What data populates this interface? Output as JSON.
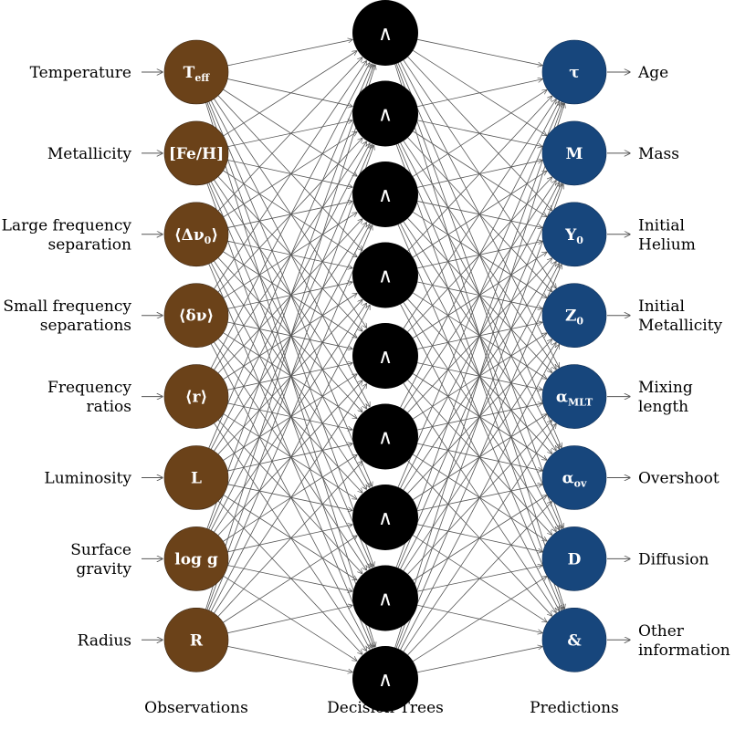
{
  "colors": {
    "observation_node": "#6b4219",
    "tree_node": "#000000",
    "prediction_node": "#17467c",
    "edge": "#555555"
  },
  "observations": [
    {
      "label_lines": [
        "Temperature"
      ],
      "node_main": "T",
      "node_sub": "eff"
    },
    {
      "label_lines": [
        "Metallicity"
      ],
      "node_main": "[Fe/H]",
      "node_sub": ""
    },
    {
      "label_lines": [
        "Large frequency",
        "separation"
      ],
      "node_main": "⟨Δν",
      "node_sub": "0",
      "node_after": "⟩"
    },
    {
      "label_lines": [
        "Small frequency",
        "separations"
      ],
      "node_main": "⟨δν⟩",
      "node_sub": ""
    },
    {
      "label_lines": [
        "Frequency",
        "ratios"
      ],
      "node_main": "⟨r⟩",
      "node_sub": ""
    },
    {
      "label_lines": [
        "Luminosity"
      ],
      "node_main": "L",
      "node_sub": ""
    },
    {
      "label_lines": [
        "Surface",
        "gravity"
      ],
      "node_main": "log g",
      "node_sub": ""
    },
    {
      "label_lines": [
        "Radius"
      ],
      "node_main": "R",
      "node_sub": ""
    }
  ],
  "trees": {
    "count": 9,
    "symbol": "∧"
  },
  "predictions": [
    {
      "label_lines": [
        "Age"
      ],
      "node_main": "τ",
      "node_sub": ""
    },
    {
      "label_lines": [
        "Mass"
      ],
      "node_main": "M",
      "node_sub": ""
    },
    {
      "label_lines": [
        "Initial",
        "Helium"
      ],
      "node_main": "Y",
      "node_sub": "0"
    },
    {
      "label_lines": [
        "Initial",
        "Metallicity"
      ],
      "node_main": "Z",
      "node_sub": "0"
    },
    {
      "label_lines": [
        "Mixing",
        "length"
      ],
      "node_main": "α",
      "node_sub": "MLT"
    },
    {
      "label_lines": [
        "Overshoot"
      ],
      "node_main": "α",
      "node_sub": "ov"
    },
    {
      "label_lines": [
        "Diffusion"
      ],
      "node_main": "D",
      "node_sub": ""
    },
    {
      "label_lines": [
        "Other",
        "information"
      ],
      "node_main": "&",
      "node_sub": ""
    }
  ],
  "column_titles": {
    "observations": "Observations",
    "trees": "Decision Trees",
    "predictions": "Predictions"
  }
}
